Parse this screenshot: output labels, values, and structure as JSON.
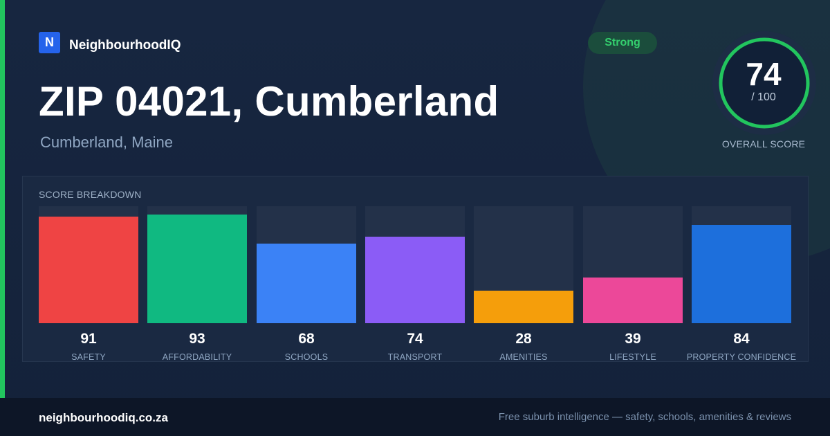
{
  "brand": {
    "logo_letter": "N",
    "name": "NeighbourhoodIQ"
  },
  "header": {
    "title": "ZIP 04021, Cumberland",
    "subtitle": "Cumberland, Maine"
  },
  "badge": {
    "label": "Strong",
    "color": "#34d06e"
  },
  "overall": {
    "score": "74",
    "max_label": "/ 100",
    "caption": "OVERALL SCORE",
    "fraction": 0.74,
    "color": "#22c55e"
  },
  "breakdown": {
    "title": "SCORE BREAKDOWN",
    "items": [
      {
        "value": "91",
        "label": "SAFETY",
        "fraction": 0.91,
        "color": "#ef4444"
      },
      {
        "value": "93",
        "label": "AFFORDABILITY",
        "fraction": 0.93,
        "color": "#10b981"
      },
      {
        "value": "68",
        "label": "SCHOOLS",
        "fraction": 0.68,
        "color": "#3b82f6"
      },
      {
        "value": "74",
        "label": "TRANSPORT",
        "fraction": 0.74,
        "color": "#8b5cf6"
      },
      {
        "value": "28",
        "label": "AMENITIES",
        "fraction": 0.28,
        "color": "#f59e0b"
      },
      {
        "value": "39",
        "label": "LIFESTYLE",
        "fraction": 0.39,
        "color": "#ec4899"
      },
      {
        "value": "84",
        "label": "PROPERTY CONFIDENCE",
        "fraction": 0.84,
        "color": "#1d6fdc"
      }
    ]
  },
  "footer": {
    "url": "neighbourhoodiq.co.za",
    "tagline": "Free suburb intelligence — safety, schools, amenities & reviews"
  }
}
